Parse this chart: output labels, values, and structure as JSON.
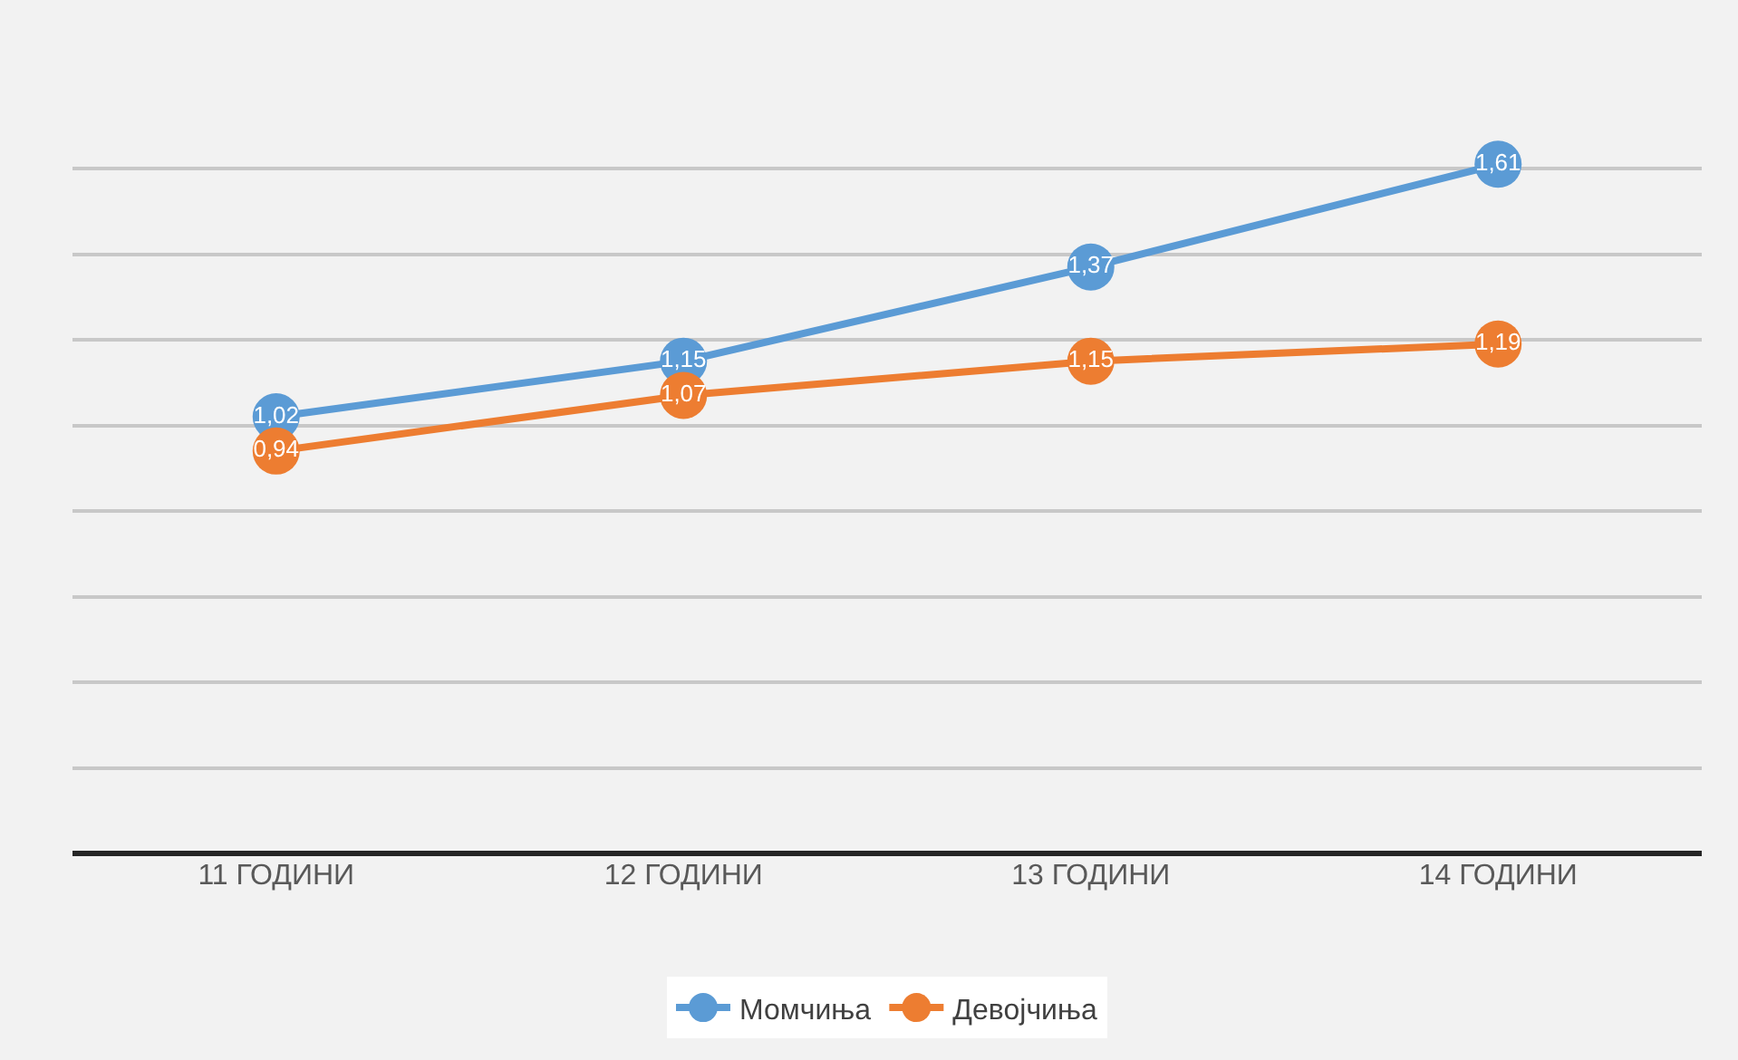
{
  "chart_data": {
    "type": "line",
    "categories": [
      "11 ГОДИНИ",
      "12 ГОДИНИ",
      "13 ГОДИНИ",
      "14 ГОДИНИ"
    ],
    "series": [
      {
        "name": "Момчиња",
        "color": "#5b9bd5",
        "values": [
          1.02,
          1.15,
          1.37,
          1.61
        ],
        "value_labels": [
          "1,02",
          "1,15",
          "1,37",
          "1,61"
        ]
      },
      {
        "name": "Девојчиња",
        "color": "#ed7d31",
        "values": [
          0.94,
          1.07,
          1.15,
          1.19
        ],
        "value_labels": [
          "0,94",
          "1,07",
          "1,15",
          "1,19"
        ]
      }
    ],
    "tick_labels": "x",
    "grid": "y",
    "legend": "bottom",
    "marker": "circle",
    "line_style": "solid"
  }
}
